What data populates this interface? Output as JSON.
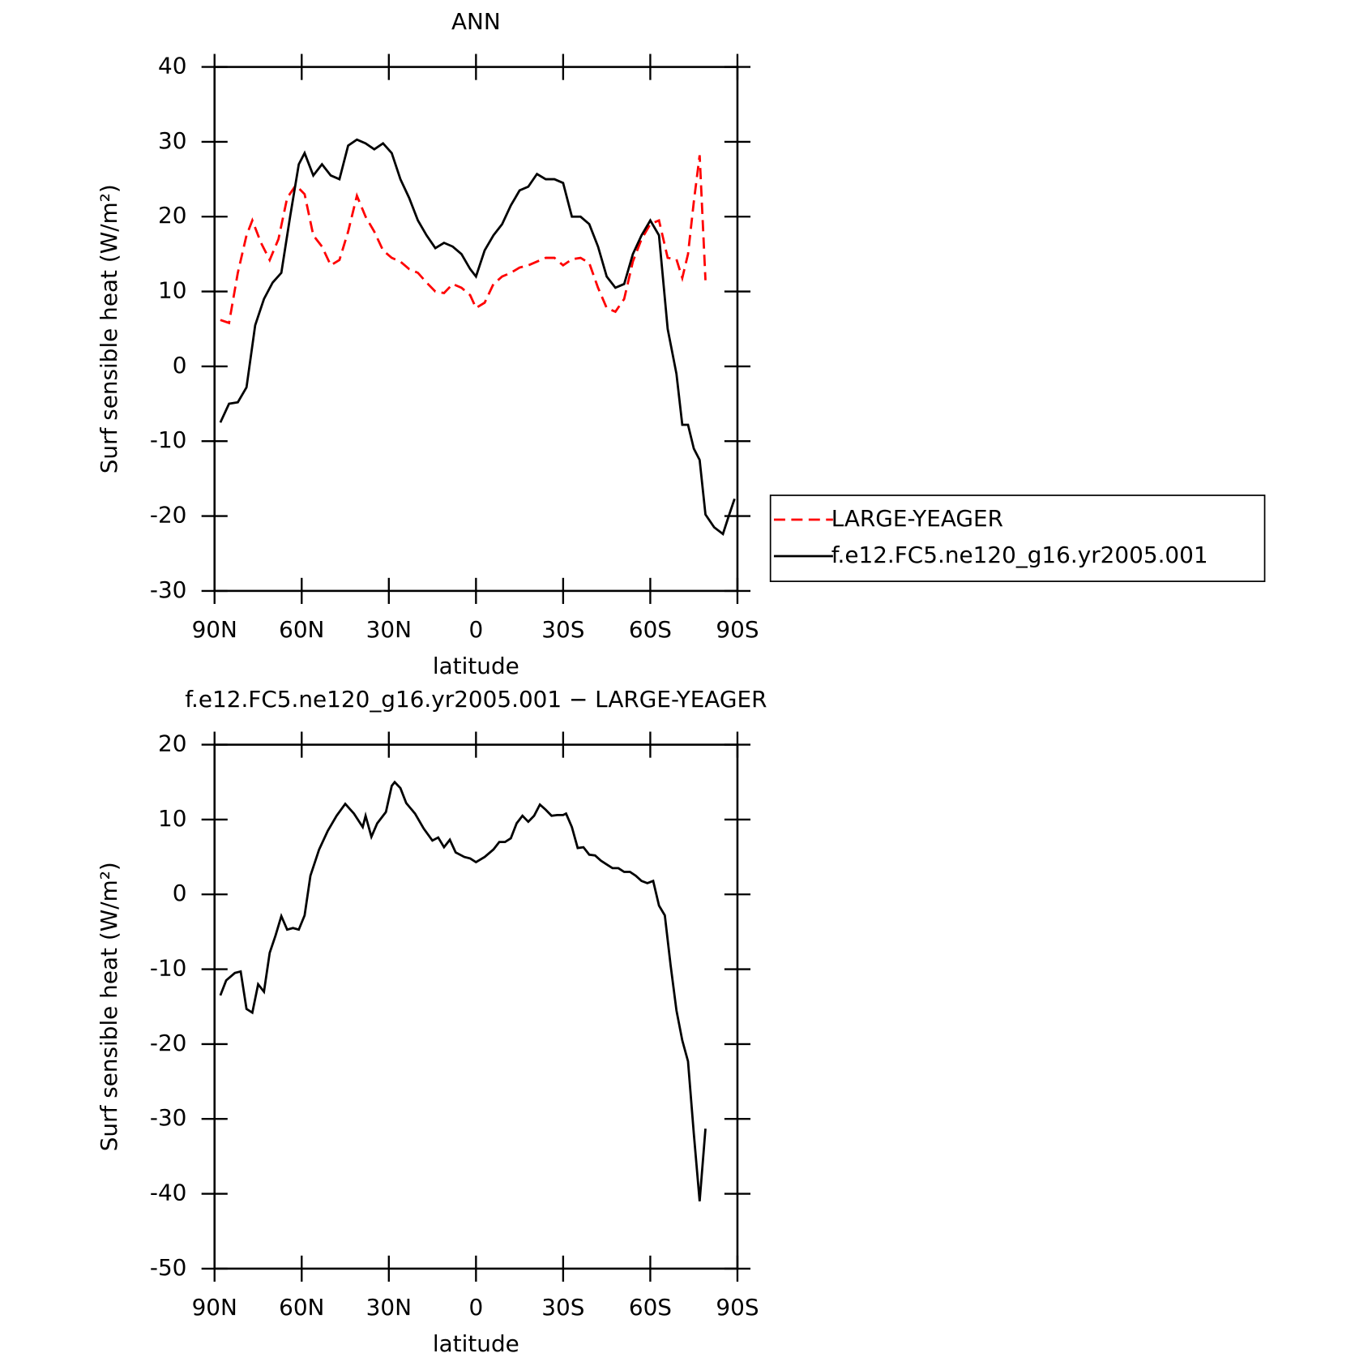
{
  "chart_data": [
    {
      "type": "line",
      "title": "ANN",
      "xlabel": "latitude",
      "ylabel": "Surf sensible heat (W/m²)",
      "xlim": [
        90,
        -90
      ],
      "xticks": [
        {
          "value": 90,
          "label": "90N"
        },
        {
          "value": 60,
          "label": "60N"
        },
        {
          "value": 30,
          "label": "30N"
        },
        0,
        {
          "value": -30,
          "label": "30S"
        },
        {
          "value": -60,
          "label": "60S"
        },
        {
          "value": -90,
          "label": "90S"
        }
      ],
      "ylim": [
        -30,
        40
      ],
      "yticks": [
        -30,
        -20,
        -10,
        0,
        10,
        20,
        30,
        40
      ],
      "legend": "right",
      "series": [
        {
          "name": "LARGE-YEAGER",
          "color": "#ff0000",
          "dash": true,
          "x": [
            88,
            85,
            82,
            79,
            77,
            74,
            71,
            68,
            65,
            62,
            59,
            56,
            53,
            50,
            47,
            44,
            41,
            38,
            35,
            32,
            29,
            26,
            23,
            20,
            17,
            14,
            11,
            8,
            5,
            2,
            0,
            -3,
            -6,
            -9,
            -12,
            -15,
            -18,
            -21,
            -24,
            -27,
            -30,
            -33,
            -36,
            -39,
            -42,
            -45,
            -48,
            -51,
            -54,
            -57,
            -60,
            -63,
            -66,
            -69,
            -71,
            -73,
            -75,
            -77,
            -79
          ],
          "values": [
            6.2,
            5.8,
            12.5,
            17.5,
            19.5,
            16.5,
            14.2,
            17,
            22.5,
            24.2,
            23,
            17.5,
            16,
            13.5,
            14.2,
            18,
            22.8,
            20,
            18,
            15.5,
            14.5,
            14,
            13,
            12.5,
            11.2,
            10,
            9.8,
            11,
            10.5,
            9.5,
            7.8,
            8.5,
            11,
            12,
            12.5,
            13.2,
            13.5,
            14,
            14.5,
            14.5,
            13.5,
            14.3,
            14.5,
            13.8,
            10.5,
            7.8,
            7.3,
            9,
            14,
            17,
            19,
            19.5,
            14.5,
            14.3,
            11.8,
            15,
            22,
            28.2,
            11.5
          ]
        },
        {
          "name": "f.e12.FC5.ne120_g16.yr2005.001",
          "color": "#000000",
          "dash": false,
          "x": [
            88,
            85,
            82,
            79,
            76,
            73,
            70,
            67,
            64,
            61,
            59,
            56,
            53,
            50,
            47,
            44,
            41,
            38,
            35,
            32,
            29,
            26,
            23,
            20,
            17,
            14,
            11,
            8,
            5,
            2,
            0,
            -3,
            -6,
            -9,
            -12,
            -15,
            -18,
            -21,
            -24,
            -27,
            -30,
            -33,
            -36,
            -39,
            -42,
            -45,
            -48,
            -51,
            -54,
            -57,
            -60,
            -63,
            -66,
            -69,
            -71,
            -73,
            -75,
            -77,
            -79,
            -82,
            -85,
            -87,
            -89
          ],
          "values": [
            -7.5,
            -5,
            -4.8,
            -2.8,
            5.5,
            9,
            11.2,
            12.5,
            20,
            27,
            28.5,
            25.5,
            27,
            25.5,
            25,
            29.5,
            30.3,
            29.8,
            29,
            29.8,
            28.5,
            25,
            22.5,
            19.5,
            17.5,
            15.8,
            16.5,
            16,
            15,
            13,
            12,
            15.5,
            17.5,
            19,
            21.5,
            23.5,
            24,
            25.7,
            25,
            25,
            24.5,
            20,
            20,
            19,
            16,
            12,
            10.5,
            11,
            15,
            17.5,
            19.5,
            17.5,
            5,
            -1,
            -7.8,
            -7.8,
            -11,
            -12.5,
            -19.8,
            -21.5,
            -22.4,
            -20,
            -17.7
          ]
        }
      ]
    },
    {
      "type": "line",
      "title": "f.e12.FC5.ne120_g16.yr2005.001 − LARGE-YEAGER",
      "xlabel": "latitude",
      "ylabel": "Surf sensible heat (W/m²)",
      "xlim": [
        90,
        -90
      ],
      "xticks": [
        {
          "value": 90,
          "label": "90N"
        },
        {
          "value": 60,
          "label": "60N"
        },
        {
          "value": 30,
          "label": "30N"
        },
        0,
        {
          "value": -30,
          "label": "30S"
        },
        {
          "value": -60,
          "label": "60S"
        },
        {
          "value": -90,
          "label": "90S"
        }
      ],
      "ylim": [
        -50,
        20
      ],
      "yticks": [
        -50,
        -40,
        -30,
        -20,
        -10,
        0,
        10,
        20
      ],
      "series": [
        {
          "color": "#000000",
          "dash": false,
          "x": [
            88,
            86,
            83,
            81,
            79,
            77,
            75,
            73,
            71,
            69,
            67,
            65,
            63,
            61,
            59,
            57,
            54,
            51,
            48,
            45,
            42,
            39,
            38,
            36,
            34,
            31,
            29,
            28,
            26,
            24,
            21,
            18,
            15,
            13,
            11,
            9,
            7,
            4,
            2,
            0,
            -3,
            -6,
            -8,
            -10,
            -12,
            -14,
            -16,
            -18,
            -20,
            -22,
            -24,
            -26,
            -28,
            -30,
            -31,
            -33,
            -35,
            -37,
            -39,
            -41,
            -43,
            -45,
            -47,
            -49,
            -51,
            -53,
            -55,
            -57,
            -59,
            -61,
            -63,
            -65,
            -67,
            -69,
            -71,
            -73,
            -75,
            -77,
            -79
          ],
          "values": [
            -13.5,
            -11.5,
            -10.5,
            -10.3,
            -15.3,
            -15.8,
            -12,
            -13,
            -7.8,
            -5.5,
            -2.9,
            -4.7,
            -4.5,
            -4.7,
            -2.8,
            2.5,
            6,
            8.5,
            10.5,
            12.1,
            10.8,
            9,
            10.5,
            7.7,
            9.5,
            11,
            14.5,
            15,
            14.2,
            12.2,
            10.8,
            8.8,
            7.2,
            7.6,
            6.3,
            7.3,
            5.6,
            5,
            4.8,
            4.3,
            5,
            6,
            7,
            7,
            7.5,
            9.5,
            10.5,
            9.7,
            10.5,
            12,
            11.3,
            10.5,
            10.6,
            10.6,
            10.8,
            9,
            6.2,
            6.3,
            5.3,
            5.2,
            4.5,
            4,
            3.5,
            3.5,
            3,
            3,
            2.5,
            1.8,
            1.5,
            1.8,
            -1.5,
            -2.8,
            -9.5,
            -15.5,
            -19.5,
            -22.3,
            -32,
            -41,
            -31.3
          ]
        }
      ]
    }
  ]
}
